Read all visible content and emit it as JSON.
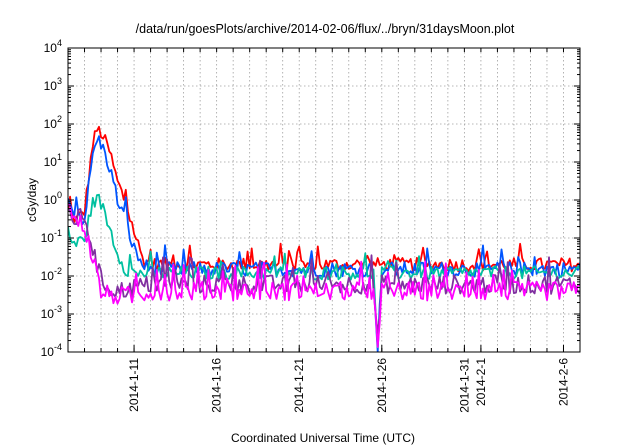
{
  "chart_data": {
    "type": "line",
    "title": "/data/run/goesPlots/archive/2014-02-06/flux/../bryn/31daysMoon.plot",
    "xlabel": "Coordinated Universal Time (UTC)",
    "ylabel": "cGy/day",
    "y_scale": "log",
    "ylim": [
      0.0001,
      10000
    ],
    "y_ticks": [
      {
        "value": 0.0001,
        "base": "10",
        "exp": "-4"
      },
      {
        "value": 0.001,
        "base": "10",
        "exp": "-3"
      },
      {
        "value": 0.01,
        "base": "10",
        "exp": "-2"
      },
      {
        "value": 0.1,
        "base": "10",
        "exp": "-1"
      },
      {
        "value": 1,
        "base": "10",
        "exp": "0"
      },
      {
        "value": 10,
        "base": "10",
        "exp": "1"
      },
      {
        "value": 100,
        "base": "10",
        "exp": "2"
      },
      {
        "value": 1000,
        "base": "10",
        "exp": "3"
      },
      {
        "value": 10000,
        "base": "10",
        "exp": "4"
      }
    ],
    "xlim": [
      "2014-01-07",
      "2014-02-07"
    ],
    "x_ticks": [
      "2014-1-11",
      "2014-1-16",
      "2014-1-21",
      "2014-1-26",
      "2014-1-31",
      "2014-2-1",
      "2014-2-6"
    ],
    "x_tick_dates": [
      "2014-01-11",
      "2014-01-16",
      "2014-01-21",
      "2014-01-26",
      "2014-01-31",
      "2014-02-01",
      "2014-02-06"
    ],
    "grid": true,
    "series": [
      {
        "color": "#ff0000",
        "noise": 0.18,
        "points": [
          [
            "2014-01-07",
            0.5
          ],
          [
            "2014-01-07 12:00",
            0.3
          ],
          [
            "2014-01-08",
            0.5
          ],
          [
            "2014-01-08 12:00",
            30
          ],
          [
            "2014-01-08 18:00",
            70
          ],
          [
            "2014-01-09",
            60
          ],
          [
            "2014-01-09 12:00",
            20
          ],
          [
            "2014-01-10",
            3
          ],
          [
            "2014-01-10 12:00",
            0.8
          ],
          [
            "2014-01-11",
            0.15
          ],
          [
            "2014-01-11 12:00",
            0.03
          ],
          [
            "2014-01-12",
            0.02
          ],
          [
            "2014-01-25 18:00",
            0.02
          ],
          [
            "2014-01-26",
            0.02
          ],
          [
            "2014-02-07",
            0.02
          ]
        ]
      },
      {
        "color": "#0055ff",
        "noise": 0.2,
        "points": [
          [
            "2014-01-07",
            0.8
          ],
          [
            "2014-01-07 12:00",
            0.5
          ],
          [
            "2014-01-08",
            0.3
          ],
          [
            "2014-01-08 12:00",
            15
          ],
          [
            "2014-01-08 18:00",
            40
          ],
          [
            "2014-01-09",
            30
          ],
          [
            "2014-01-09 12:00",
            8
          ],
          [
            "2014-01-10",
            1
          ],
          [
            "2014-01-10 12:00",
            0.3
          ],
          [
            "2014-01-11",
            0.05
          ],
          [
            "2014-01-11 12:00",
            0.02
          ],
          [
            "2014-01-12",
            0.015
          ],
          [
            "2014-01-25 12:00",
            0.015
          ],
          [
            "2014-01-25 18:00",
            0.0001
          ],
          [
            "2014-01-26",
            0.015
          ],
          [
            "2014-02-07",
            0.015
          ]
        ]
      },
      {
        "color": "#00c0a0",
        "noise": 0.18,
        "points": [
          [
            "2014-01-07",
            0.1
          ],
          [
            "2014-01-07 12:00",
            0.07
          ],
          [
            "2014-01-08",
            0.1
          ],
          [
            "2014-01-08 12:00",
            0.8
          ],
          [
            "2014-01-08 18:00",
            1.2
          ],
          [
            "2014-01-09",
            0.8
          ],
          [
            "2014-01-09 12:00",
            0.2
          ],
          [
            "2014-01-10",
            0.04
          ],
          [
            "2014-01-10 12:00",
            0.015
          ],
          [
            "2014-01-11",
            0.012
          ],
          [
            "2014-01-12",
            0.012
          ],
          [
            "2014-01-25 12:00",
            0.012
          ],
          [
            "2014-01-25 18:00",
            0.0001
          ],
          [
            "2014-01-26",
            0.012
          ],
          [
            "2014-02-07",
            0.012
          ]
        ]
      },
      {
        "color": "#8030a0",
        "noise": 0.25,
        "points": [
          [
            "2014-01-07",
            0.5
          ],
          [
            "2014-01-07 12:00",
            0.3
          ],
          [
            "2014-01-08",
            0.4
          ],
          [
            "2014-01-08 12:00",
            0.05
          ],
          [
            "2014-01-09",
            0.008
          ],
          [
            "2014-01-09 12:00",
            0.005
          ],
          [
            "2014-01-10",
            0.004
          ],
          [
            "2014-01-11",
            0.005
          ],
          [
            "2014-01-12",
            0.006
          ],
          [
            "2014-01-25 12:00",
            0.006
          ],
          [
            "2014-01-25 18:00",
            0.0001
          ],
          [
            "2014-01-26",
            0.006
          ],
          [
            "2014-02-07",
            0.006
          ]
        ]
      },
      {
        "color": "#ff00ff",
        "noise": 0.25,
        "points": [
          [
            "2014-01-07",
            0.6
          ],
          [
            "2014-01-07 12:00",
            0.3
          ],
          [
            "2014-01-08",
            0.2
          ],
          [
            "2014-01-08 12:00",
            0.03
          ],
          [
            "2014-01-09",
            0.004
          ],
          [
            "2014-01-09 12:00",
            0.003
          ],
          [
            "2014-01-10",
            0.003
          ],
          [
            "2014-01-11",
            0.003
          ],
          [
            "2014-01-12",
            0.004
          ],
          [
            "2014-01-25 12:00",
            0.004
          ],
          [
            "2014-01-25 18:00",
            0.0001
          ],
          [
            "2014-01-26",
            0.004
          ],
          [
            "2014-02-07",
            0.004
          ]
        ]
      }
    ]
  }
}
